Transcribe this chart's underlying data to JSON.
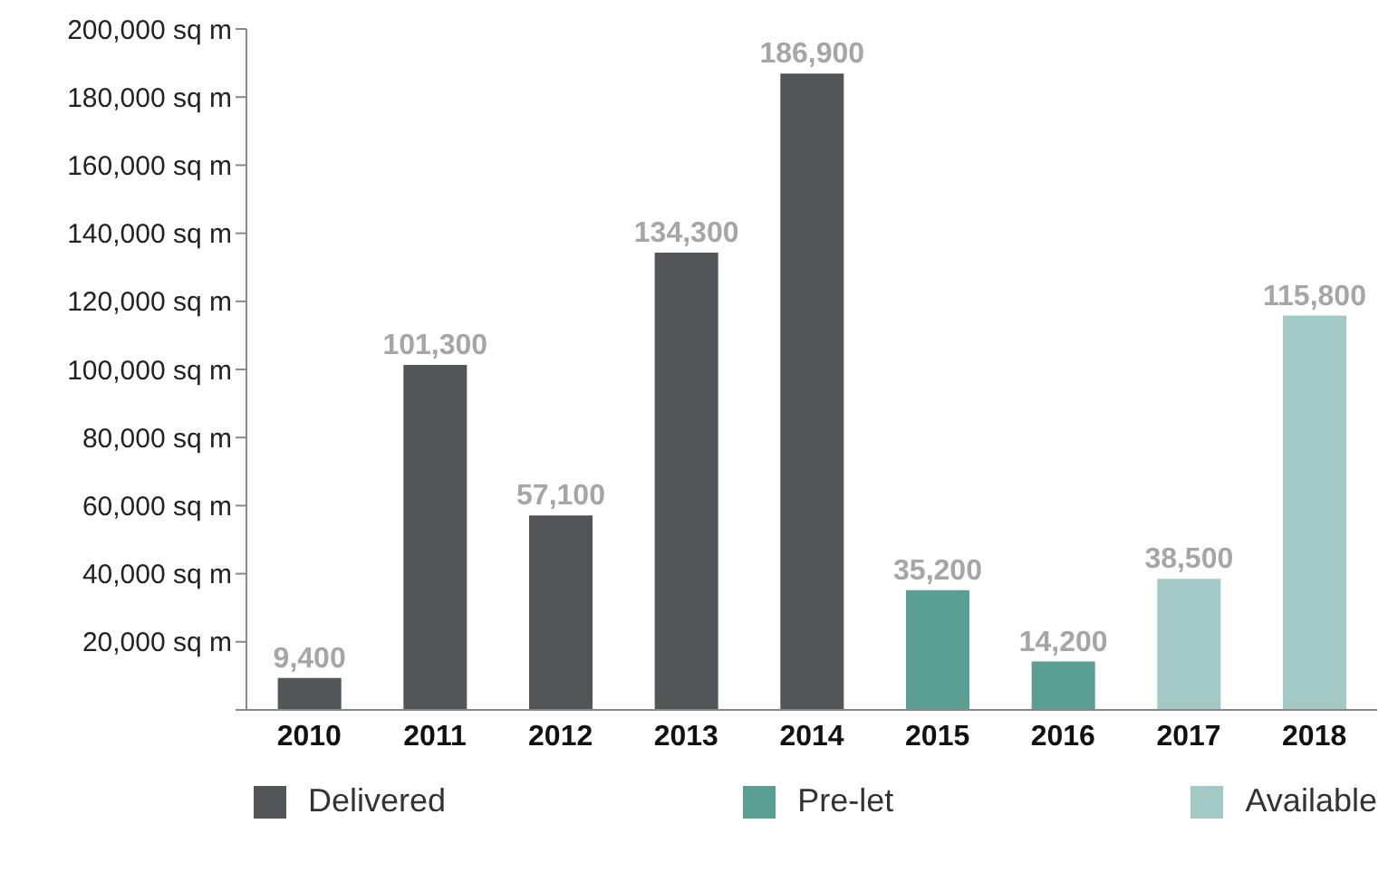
{
  "chart_data": {
    "type": "bar",
    "stacked": true,
    "categories": [
      "2010",
      "2011",
      "2012",
      "2013",
      "2014",
      "2015",
      "2016",
      "2017",
      "2018"
    ],
    "series": [
      {
        "name": "Delivered",
        "color": "#545559",
        "values": [
          9400,
          101300,
          57100,
          134300,
          186900,
          null,
          null,
          null,
          null
        ],
        "value_labels": [
          "9,400",
          "101,300",
          "57,100",
          "134,300",
          "186,900",
          null,
          null,
          null,
          null
        ]
      },
      {
        "name": "Pre-let",
        "color": "#5b9f94",
        "values": [
          null,
          null,
          null,
          null,
          null,
          35200,
          14200,
          null,
          null
        ],
        "value_labels": [
          null,
          null,
          null,
          null,
          null,
          "35,200",
          "14,200",
          null,
          null
        ]
      },
      {
        "name": "Available",
        "color": "#a3c9c4",
        "values": [
          null,
          null,
          null,
          null,
          null,
          null,
          null,
          38500,
          115800
        ],
        "value_labels": [
          null,
          null,
          null,
          null,
          null,
          null,
          null,
          "38,500",
          "115,800"
        ]
      }
    ],
    "ylim": [
      0,
      200000
    ],
    "yticks": [
      {
        "value": 0,
        "label": null
      },
      {
        "value": 20000,
        "label": "20,000 sq m"
      },
      {
        "value": 40000,
        "label": "40,000 sq m"
      },
      {
        "value": 60000,
        "label": "60,000 sq m"
      },
      {
        "value": 80000,
        "label": "80,000 sq m"
      },
      {
        "value": 100000,
        "label": "100,000 sq m"
      },
      {
        "value": 120000,
        "label": "120,000 sq m"
      },
      {
        "value": 140000,
        "label": "140,000 sq m"
      },
      {
        "value": 160000,
        "label": "160,000 sq m"
      },
      {
        "value": 180000,
        "label": "180,000 sq m"
      },
      {
        "value": 200000,
        "label": "200,000 sq m"
      }
    ],
    "grid": false,
    "legend": "bottom"
  }
}
